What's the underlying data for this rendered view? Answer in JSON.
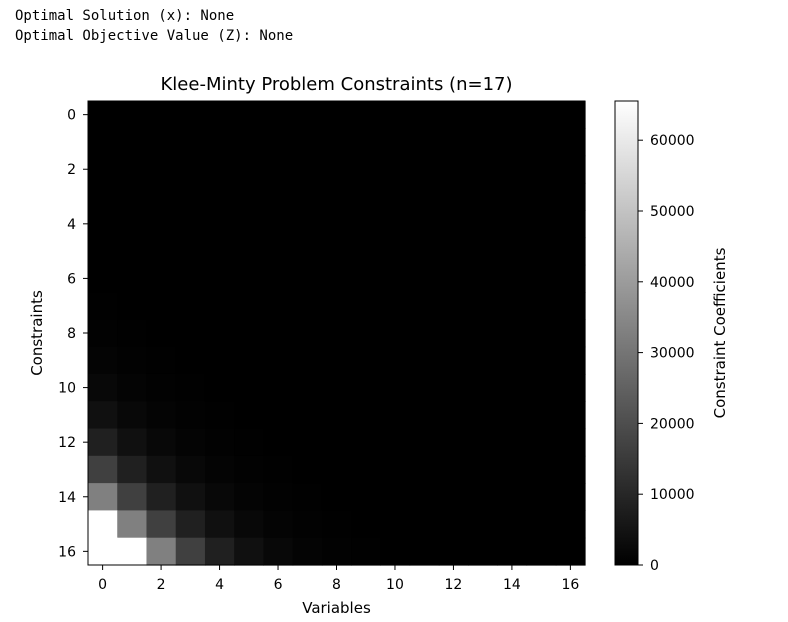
{
  "console": {
    "line1": "Optimal Solution (x): None",
    "line2": "Optimal Objective Value (Z): None"
  },
  "chart_data": {
    "type": "heatmap",
    "title": "Klee-Minty Problem Constraints (n=17)",
    "xlabel": "Variables",
    "ylabel": "Constraints",
    "colorbar_label": "Constraint Coefficients",
    "colormap": "gray",
    "n": 17,
    "matrix_rule": "A[i][j] = 2^(i-j+1) for j < i, 1 for j == i, 0 for j > i",
    "x_ticks": [
      "0",
      "2",
      "4",
      "6",
      "8",
      "10",
      "12",
      "14",
      "16"
    ],
    "y_ticks": [
      "0",
      "2",
      "4",
      "6",
      "8",
      "10",
      "12",
      "14",
      "16"
    ],
    "color_range": [
      0,
      65536
    ],
    "colorbar_ticks": [
      "0",
      "10000",
      "20000",
      "30000",
      "40000",
      "50000",
      "60000"
    ],
    "colorbar_tick_values": [
      0,
      10000,
      20000,
      30000,
      40000,
      50000,
      60000
    ]
  }
}
